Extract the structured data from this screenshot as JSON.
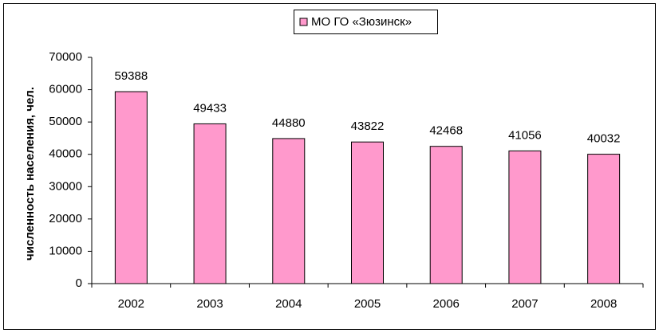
{
  "chart_data": {
    "type": "bar",
    "ylabel": "численность населения, чел.",
    "categories": [
      "2002",
      "2003",
      "2004",
      "2005",
      "2006",
      "2007",
      "2008"
    ],
    "series": [
      {
        "name": "МО ГО «Зюзинск»",
        "color": "#ff99cc",
        "values": [
          59388,
          49433,
          44880,
          43822,
          42468,
          41056,
          40032
        ]
      }
    ],
    "ylim": [
      0,
      70000
    ],
    "yticks": [
      0,
      10000,
      20000,
      30000,
      40000,
      50000,
      60000,
      70000
    ],
    "grid": false,
    "legend": "top"
  }
}
